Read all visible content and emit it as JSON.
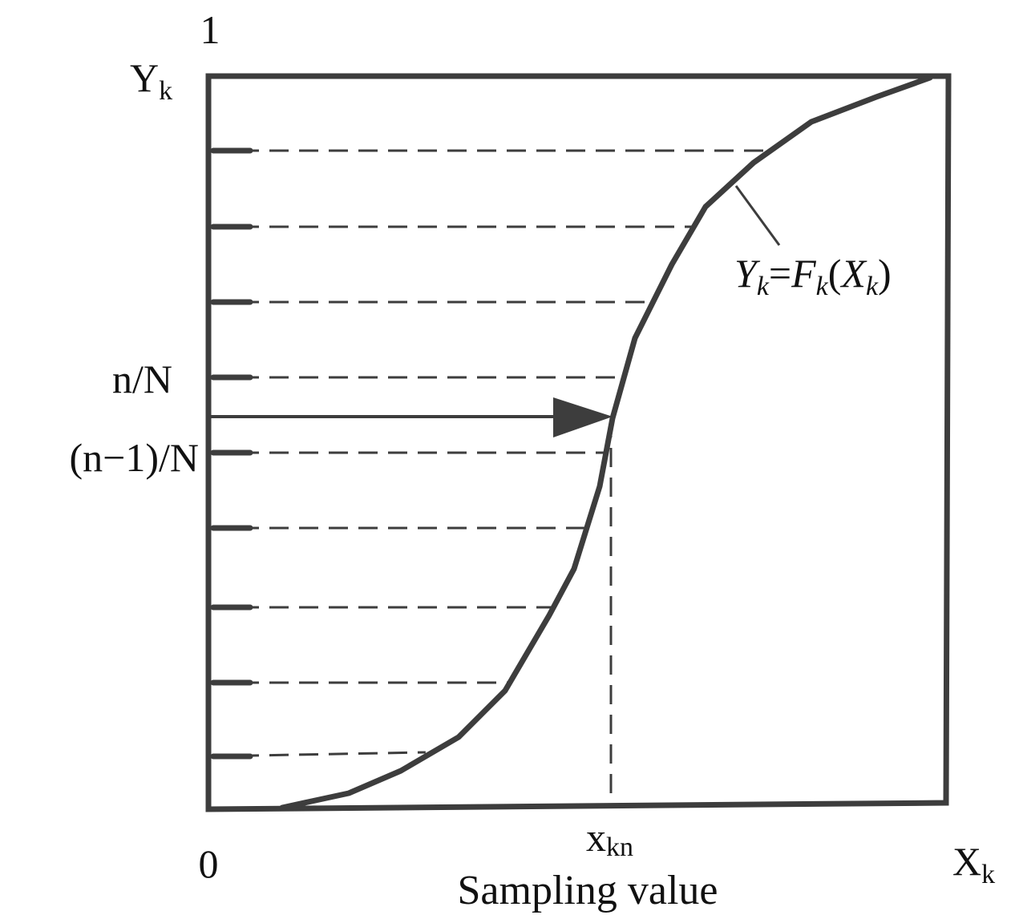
{
  "labels": {
    "y_top": "1",
    "y_axis": "Y",
    "y_axis_sub": "k",
    "n_over_N": "n/N",
    "n_minus_1_over_N": "(n−1)/N",
    "origin": "0",
    "x_sample": "x",
    "x_sample_sub": "kn",
    "x_axis": "X",
    "x_axis_sub": "k",
    "x_title": "Sampling value",
    "curve_Y": "Y",
    "curve_Y_sub": "k",
    "curve_eq": "=",
    "curve_F": "F",
    "curve_F_sub": "k",
    "curve_open": "(",
    "curve_X": "X",
    "curve_X_sub": "k",
    "curve_close": ")"
  },
  "diagram": {
    "curve_name": "cumulative distribution curve",
    "levels": 9,
    "sampled_level": 5.5,
    "line_color": "#3d3d3d"
  }
}
